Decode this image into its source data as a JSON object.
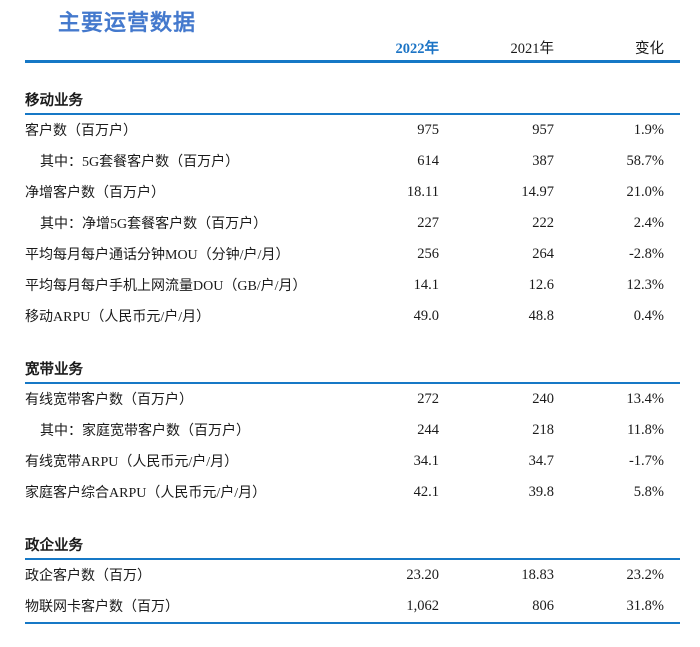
{
  "page": {
    "title": "主要运营数据"
  },
  "colors": {
    "accent_line": "#1678c6",
    "title_blue": "#4479cd",
    "header_2022_blue": "#1c74c5",
    "text": "#1a1a1a"
  },
  "table": {
    "columns": [
      "2022年",
      "2021年",
      "变化"
    ],
    "sections": [
      {
        "name": "移动业务",
        "rows": [
          {
            "label": "客户数（百万户）",
            "indent": false,
            "v2022": "975",
            "v2021": "957",
            "change": "1.9%"
          },
          {
            "label": "其中：5G套餐客户数（百万户）",
            "indent": true,
            "v2022": "614",
            "v2021": "387",
            "change": "58.7%"
          },
          {
            "label": "净增客户数（百万户）",
            "indent": false,
            "v2022": "18.11",
            "v2021": "14.97",
            "change": "21.0%"
          },
          {
            "label": "其中：净增5G套餐客户数（百万户）",
            "indent": true,
            "v2022": "227",
            "v2021": "222",
            "change": "2.4%"
          },
          {
            "label": "平均每月每户通话分钟MOU（分钟/户/月）",
            "indent": false,
            "v2022": "256",
            "v2021": "264",
            "change": "-2.8%"
          },
          {
            "label": "平均每月每户手机上网流量DOU（GB/户/月）",
            "indent": false,
            "v2022": "14.1",
            "v2021": "12.6",
            "change": "12.3%"
          },
          {
            "label": "移动ARPU（人民币元/户/月）",
            "indent": false,
            "v2022": "49.0",
            "v2021": "48.8",
            "change": "0.4%"
          }
        ]
      },
      {
        "name": "宽带业务",
        "rows": [
          {
            "label": "有线宽带客户数（百万户）",
            "indent": false,
            "v2022": "272",
            "v2021": "240",
            "change": "13.4%"
          },
          {
            "label": "其中：家庭宽带客户数（百万户）",
            "indent": true,
            "v2022": "244",
            "v2021": "218",
            "change": "11.8%"
          },
          {
            "label": "有线宽带ARPU（人民币元/户/月）",
            "indent": false,
            "v2022": "34.1",
            "v2021": "34.7",
            "change": "-1.7%"
          },
          {
            "label": "家庭客户综合ARPU（人民币元/户/月）",
            "indent": false,
            "v2022": "42.1",
            "v2021": "39.8",
            "change": "5.8%"
          }
        ]
      },
      {
        "name": "政企业务",
        "rows": [
          {
            "label": "政企客户数（百万）",
            "indent": false,
            "v2022": "23.20",
            "v2021": "18.83",
            "change": "23.2%"
          },
          {
            "label": "物联网卡客户数（百万）",
            "indent": false,
            "v2022": "1,062",
            "v2021": "806",
            "change": "31.8%"
          }
        ]
      }
    ]
  }
}
